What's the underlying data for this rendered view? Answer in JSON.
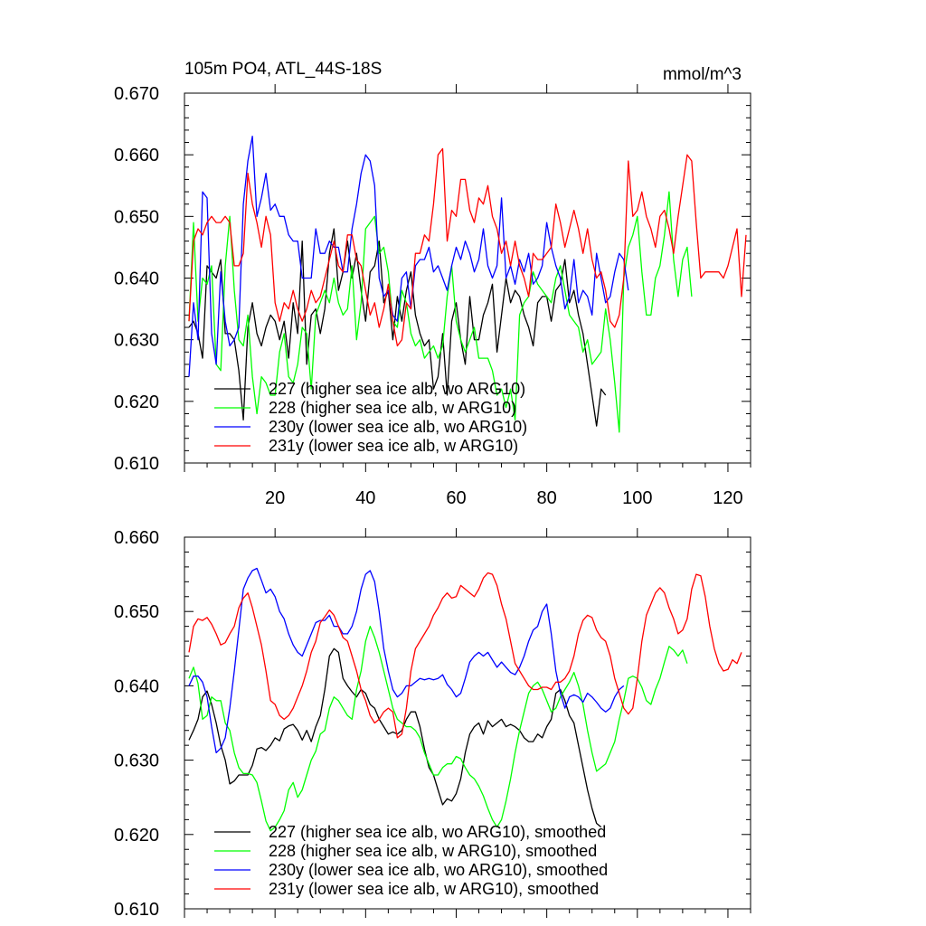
{
  "chart_data": [
    {
      "type": "line",
      "title": "105m PO4, ATL_44S-18S",
      "units": "mmol/m^3",
      "ylim": [
        0.61,
        0.67
      ],
      "xlim": [
        0,
        125
      ],
      "y_tick_labels": [
        "0.610",
        "0.620",
        "0.630",
        "0.640",
        "0.650",
        "0.660",
        "0.670"
      ],
      "x_tick_labels": [
        "20",
        "40",
        "60",
        "80",
        "100",
        "120"
      ],
      "legend": [
        "227 (higher sea ice alb, wo ARG10)",
        "228 (higher sea ice alb, w ARG10)",
        "230y (lower sea ice alb, wo ARG10)",
        "231y (lower sea ice alb, w ARG10)"
      ],
      "series": [
        {
          "name": "227",
          "color": "#000000",
          "values": [
            0.632,
            0.633,
            0.631,
            0.627,
            0.642,
            0.641,
            0.64,
            0.643,
            0.631,
            0.631,
            0.63,
            0.625,
            0.617,
            0.632,
            0.636,
            0.631,
            0.629,
            0.632,
            0.634,
            0.633,
            0.63,
            0.633,
            0.627,
            0.636,
            0.631,
            0.646,
            0.626,
            0.634,
            0.635,
            0.631,
            0.635,
            0.644,
            0.648,
            0.638,
            0.641,
            0.646,
            0.64,
            0.644,
            0.638,
            0.633,
            0.641,
            0.642,
            0.646,
            0.636,
            0.638,
            0.63,
            0.637,
            0.633,
            0.638,
            0.641,
            0.634,
            0.631,
            0.629,
            0.63,
            0.622,
            0.624,
            0.631,
            0.621,
            0.633,
            0.636,
            0.63,
            0.626,
            0.637,
            0.63,
            0.63,
            0.634,
            0.636,
            0.639,
            0.628,
            0.634,
            0.64,
            0.636,
            0.638,
            0.637,
            0.634,
            0.632,
            0.629,
            0.636,
            0.637,
            0.637,
            0.633,
            0.638,
            0.639,
            0.643,
            0.636,
            0.638,
            0.634,
            0.631,
            0.626,
            0.621,
            0.616,
            0.622,
            0.621
          ]
        },
        {
          "name": "228",
          "color": "#00ff00",
          "values": [
            0.633,
            0.649,
            0.633,
            0.64,
            0.639,
            0.642,
            0.626,
            0.625,
            0.642,
            0.65,
            0.638,
            0.63,
            0.629,
            0.634,
            0.624,
            0.618,
            0.624,
            0.623,
            0.621,
            0.621,
            0.628,
            0.631,
            0.624,
            0.623,
            0.626,
            0.632,
            0.631,
            0.622,
            0.634,
            0.636,
            0.638,
            0.636,
            0.64,
            0.636,
            0.634,
            0.635,
            0.642,
            0.63,
            0.636,
            0.648,
            0.649,
            0.65,
            0.644,
            0.645,
            0.641,
            0.633,
            0.632,
            0.638,
            0.636,
            0.631,
            0.629,
            0.63,
            0.627,
            0.628,
            0.629,
            0.627,
            0.629,
            0.637,
            0.642,
            0.633,
            0.63,
            0.628,
            0.63,
            0.632,
            0.627,
            0.627,
            0.627,
            0.625,
            0.621,
            0.622,
            0.619,
            0.622,
            0.617,
            0.634,
            0.636,
            0.637,
            0.641,
            0.639,
            0.638,
            0.637,
            0.636,
            0.64,
            0.642,
            0.638,
            0.634,
            0.633,
            0.632,
            0.628,
            0.63,
            0.626,
            0.627,
            0.628,
            0.635,
            0.63,
            0.623,
            0.615,
            0.64,
            0.645,
            0.647,
            0.65,
            0.641,
            0.634,
            0.634,
            0.64,
            0.642,
            0.647,
            0.654,
            0.643,
            0.637,
            0.643,
            0.645,
            0.637
          ]
        },
        {
          "name": "230y",
          "color": "#0000ff",
          "values": [
            0.624,
            0.636,
            0.63,
            0.654,
            0.653,
            0.631,
            0.626,
            0.641,
            0.633,
            0.629,
            0.63,
            0.632,
            0.652,
            0.659,
            0.663,
            0.65,
            0.653,
            0.657,
            0.651,
            0.652,
            0.65,
            0.65,
            0.647,
            0.646,
            0.646,
            0.64,
            0.64,
            0.64,
            0.648,
            0.644,
            0.644,
            0.646,
            0.645,
            0.645,
            0.641,
            0.641,
            0.648,
            0.652,
            0.657,
            0.66,
            0.659,
            0.655,
            0.64,
            0.637,
            0.638,
            0.634,
            0.633,
            0.64,
            0.641,
            0.635,
            0.642,
            0.643,
            0.643,
            0.645,
            0.641,
            0.642,
            0.64,
            0.638,
            0.642,
            0.645,
            0.643,
            0.646,
            0.644,
            0.641,
            0.643,
            0.648,
            0.642,
            0.64,
            0.642,
            0.653,
            0.64,
            0.642,
            0.639,
            0.643,
            0.641,
            0.644,
            0.639,
            0.64,
            0.642,
            0.649,
            0.645,
            0.642,
            0.64,
            0.635,
            0.637,
            0.643,
            0.636,
            0.638,
            0.637,
            0.634,
            0.644,
            0.64,
            0.636,
            0.637,
            0.641,
            0.644,
            0.643,
            0.638
          ]
        },
        {
          "name": "231y",
          "color": "#ff0000",
          "values": [
            0.633,
            0.646,
            0.648,
            0.647,
            0.649,
            0.65,
            0.649,
            0.649,
            0.65,
            0.649,
            0.642,
            0.642,
            0.644,
            0.657,
            0.652,
            0.649,
            0.645,
            0.65,
            0.647,
            0.636,
            0.633,
            0.636,
            0.635,
            0.638,
            0.635,
            0.633,
            0.635,
            0.638,
            0.636,
            0.637,
            0.64,
            0.643,
            0.646,
            0.642,
            0.641,
            0.647,
            0.647,
            0.643,
            0.642,
            0.638,
            0.634,
            0.636,
            0.632,
            0.635,
            0.639,
            0.633,
            0.629,
            0.63,
            0.636,
            0.635,
            0.644,
            0.644,
            0.647,
            0.646,
            0.652,
            0.66,
            0.661,
            0.646,
            0.651,
            0.65,
            0.656,
            0.656,
            0.651,
            0.649,
            0.653,
            0.652,
            0.655,
            0.65,
            0.648,
            0.644,
            0.646,
            0.642,
            0.646,
            0.642,
            0.64,
            0.637,
            0.644,
            0.643,
            0.643,
            0.644,
            0.645,
            0.652,
            0.649,
            0.645,
            0.648,
            0.651,
            0.648,
            0.644,
            0.648,
            0.643,
            0.64,
            0.641,
            0.638,
            0.633,
            0.632,
            0.634,
            0.64,
            0.659,
            0.65,
            0.651,
            0.654,
            0.65,
            0.648,
            0.645,
            0.65,
            0.651,
            0.648,
            0.644,
            0.65,
            0.655,
            0.66,
            0.659,
            0.649,
            0.64,
            0.641,
            0.641,
            0.641,
            0.641,
            0.64,
            0.642,
            0.645,
            0.648,
            0.637,
            0.647
          ]
        }
      ]
    },
    {
      "type": "line",
      "title": "",
      "ylim": [
        0.61,
        0.66
      ],
      "xlim": [
        0,
        125
      ],
      "y_tick_labels": [
        "0.610",
        "0.620",
        "0.630",
        "0.640",
        "0.650",
        "0.660"
      ],
      "legend": [
        "227 (higher sea ice alb, wo ARG10), smoothed",
        "228 (higher sea ice alb, w ARG10), smoothed",
        "230y (lower sea ice alb, wo ARG10), smoothed",
        "231y (lower sea ice alb, w ARG10), smoothed"
      ],
      "series": [
        {
          "name": "227",
          "color": "#000000",
          "values": [
            0.6327,
            0.634,
            0.6355,
            0.6385,
            0.6393,
            0.6375,
            0.635,
            0.632,
            0.63,
            0.6268,
            0.6272,
            0.628,
            0.628,
            0.628,
            0.6293,
            0.6315,
            0.6317,
            0.6313,
            0.632,
            0.633,
            0.6326,
            0.6342,
            0.6346,
            0.6348,
            0.634,
            0.6327,
            0.634,
            0.6325,
            0.6345,
            0.636,
            0.6395,
            0.644,
            0.645,
            0.6445,
            0.641,
            0.64,
            0.6392,
            0.6385,
            0.6395,
            0.639,
            0.6375,
            0.637,
            0.6355,
            0.6345,
            0.6335,
            0.6338,
            0.6335,
            0.634,
            0.6355,
            0.6365,
            0.6365,
            0.6345,
            0.6315,
            0.629,
            0.628,
            0.626,
            0.624,
            0.6248,
            0.6245,
            0.6255,
            0.6275,
            0.631,
            0.6335,
            0.6345,
            0.635,
            0.6335,
            0.6353,
            0.6345,
            0.635,
            0.6355,
            0.6345,
            0.6348,
            0.6345,
            0.634,
            0.633,
            0.6325,
            0.6325,
            0.6335,
            0.633,
            0.6345,
            0.6355,
            0.639,
            0.6395,
            0.638,
            0.636,
            0.635,
            0.632,
            0.629,
            0.626,
            0.6235,
            0.6215,
            0.621
          ]
        },
        {
          "name": "228",
          "color": "#00ff00",
          "values": [
            0.641,
            0.6425,
            0.6403,
            0.6355,
            0.636,
            0.6385,
            0.638,
            0.638,
            0.635,
            0.634,
            0.631,
            0.629,
            0.6282,
            0.6282,
            0.628,
            0.627,
            0.6245,
            0.6218,
            0.6205,
            0.621,
            0.622,
            0.6232,
            0.626,
            0.627,
            0.625,
            0.626,
            0.628,
            0.63,
            0.6312,
            0.6335,
            0.634,
            0.637,
            0.6385,
            0.638,
            0.637,
            0.636,
            0.6355,
            0.6395,
            0.642,
            0.646,
            0.648,
            0.6465,
            0.6445,
            0.642,
            0.6395,
            0.637,
            0.6355,
            0.635,
            0.6345,
            0.6345,
            0.634,
            0.633,
            0.631,
            0.6295,
            0.628,
            0.628,
            0.629,
            0.6295,
            0.6295,
            0.6305,
            0.6302,
            0.629,
            0.628,
            0.6275,
            0.6265,
            0.6252,
            0.6235,
            0.622,
            0.621,
            0.622,
            0.6245,
            0.6275,
            0.631,
            0.634,
            0.6365,
            0.639,
            0.64,
            0.6405,
            0.6395,
            0.638,
            0.6365,
            0.637,
            0.6385,
            0.6395,
            0.6405,
            0.6418,
            0.64,
            0.6375,
            0.634,
            0.631,
            0.6285,
            0.629,
            0.6295,
            0.631,
            0.6325,
            0.6355,
            0.638,
            0.641,
            0.6413,
            0.641,
            0.6398,
            0.638,
            0.6375,
            0.6395,
            0.641,
            0.6432,
            0.6453,
            0.6448,
            0.644,
            0.6448,
            0.643
          ]
        },
        {
          "name": "230y",
          "color": "#0000ff",
          "values": [
            0.64,
            0.6413,
            0.6413,
            0.6405,
            0.6385,
            0.6345,
            0.631,
            0.6316,
            0.633,
            0.637,
            0.642,
            0.6475,
            0.653,
            0.6545,
            0.6555,
            0.6558,
            0.6542,
            0.6525,
            0.653,
            0.652,
            0.65,
            0.649,
            0.647,
            0.6455,
            0.6445,
            0.644,
            0.6455,
            0.647,
            0.6485,
            0.6488,
            0.6488,
            0.6495,
            0.648,
            0.648,
            0.647,
            0.647,
            0.648,
            0.65,
            0.653,
            0.655,
            0.6555,
            0.654,
            0.65,
            0.645,
            0.642,
            0.6395,
            0.6385,
            0.639,
            0.64,
            0.64,
            0.6405,
            0.641,
            0.6408,
            0.641,
            0.6408,
            0.641,
            0.6415,
            0.6402,
            0.6395,
            0.6385,
            0.639,
            0.641,
            0.6432,
            0.644,
            0.6445,
            0.644,
            0.6445,
            0.6435,
            0.6425,
            0.6432,
            0.6425,
            0.6418,
            0.6415,
            0.6425,
            0.644,
            0.646,
            0.6475,
            0.648,
            0.65,
            0.651,
            0.647,
            0.642,
            0.639,
            0.637,
            0.6385,
            0.6388,
            0.6385,
            0.6378,
            0.639,
            0.6385,
            0.6378,
            0.637,
            0.6365,
            0.637,
            0.6385,
            0.6395,
            0.64
          ]
        },
        {
          "name": "231y",
          "color": "#ff0000",
          "values": [
            0.6445,
            0.648,
            0.649,
            0.6488,
            0.6492,
            0.6483,
            0.647,
            0.6455,
            0.6458,
            0.647,
            0.648,
            0.6505,
            0.6518,
            0.6525,
            0.6505,
            0.648,
            0.6455,
            0.642,
            0.638,
            0.6375,
            0.636,
            0.6355,
            0.636,
            0.637,
            0.6385,
            0.64,
            0.642,
            0.6445,
            0.646,
            0.6485,
            0.6493,
            0.6502,
            0.6495,
            0.648,
            0.6465,
            0.646,
            0.644,
            0.642,
            0.6395,
            0.638,
            0.636,
            0.635,
            0.6355,
            0.6365,
            0.637,
            0.6365,
            0.633,
            0.6335,
            0.637,
            0.642,
            0.645,
            0.646,
            0.647,
            0.648,
            0.6495,
            0.6505,
            0.6518,
            0.6525,
            0.6518,
            0.652,
            0.6535,
            0.653,
            0.6525,
            0.652,
            0.653,
            0.6545,
            0.6552,
            0.655,
            0.6535,
            0.651,
            0.649,
            0.646,
            0.643,
            0.642,
            0.641,
            0.64,
            0.6395,
            0.6395,
            0.6398,
            0.6398,
            0.6395,
            0.6405,
            0.6405,
            0.641,
            0.642,
            0.644,
            0.647,
            0.6488,
            0.6495,
            0.6492,
            0.6475,
            0.6465,
            0.646,
            0.644,
            0.641,
            0.639,
            0.637,
            0.6362,
            0.637,
            0.641,
            0.646,
            0.6495,
            0.651,
            0.6525,
            0.6532,
            0.6525,
            0.6505,
            0.649,
            0.647,
            0.6475,
            0.649,
            0.653,
            0.655,
            0.6548,
            0.652,
            0.648,
            0.645,
            0.643,
            0.642,
            0.6422,
            0.6435,
            0.643,
            0.6445
          ]
        }
      ]
    }
  ]
}
